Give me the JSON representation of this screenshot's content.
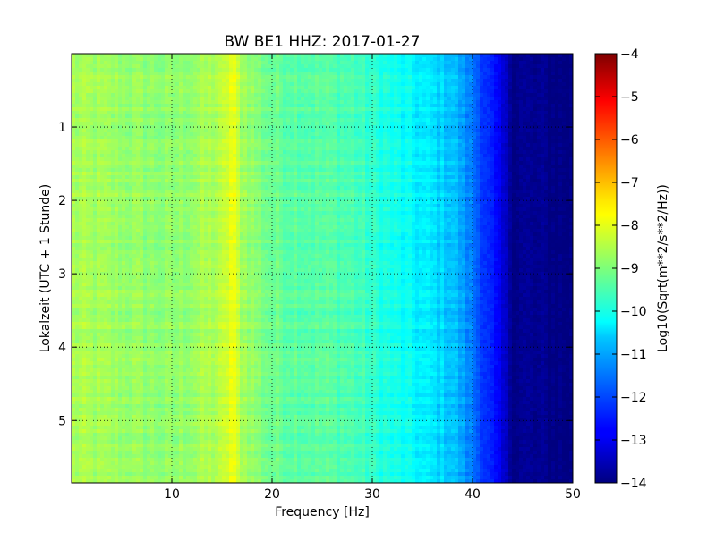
{
  "chart_data": {
    "type": "heatmap",
    "title": "BW BE1 HHZ: 2017-01-27",
    "xlabel": "Frequency [Hz]",
    "ylabel": "Lokalzeit (UTC + 1 Stunde)",
    "xlim": [
      0,
      50
    ],
    "ylim": [
      5.85,
      0
    ],
    "x_ticks": [
      {
        "value": 10,
        "label": "10"
      },
      {
        "value": 20,
        "label": "20"
      },
      {
        "value": 30,
        "label": "30"
      },
      {
        "value": 40,
        "label": "40"
      },
      {
        "value": 50,
        "label": "50"
      }
    ],
    "y_ticks": [
      {
        "value": 1,
        "label": "1"
      },
      {
        "value": 2,
        "label": "2"
      },
      {
        "value": 3,
        "label": "3"
      },
      {
        "value": 4,
        "label": "4"
      },
      {
        "value": 5,
        "label": "5"
      }
    ],
    "grid": true,
    "colormap": "jet",
    "colorbar": {
      "label": "Log10(Sqrt(m**2/s**2/Hz))",
      "range": [
        -14,
        -4
      ],
      "ticks": [
        {
          "value": -4,
          "label": "−4"
        },
        {
          "value": -5,
          "label": "−5"
        },
        {
          "value": -6,
          "label": "−6"
        },
        {
          "value": -7,
          "label": "−7"
        },
        {
          "value": -8,
          "label": "−8"
        },
        {
          "value": -9,
          "label": "−9"
        },
        {
          "value": -10,
          "label": "−10"
        },
        {
          "value": -11,
          "label": "−11"
        },
        {
          "value": -12,
          "label": "−12"
        },
        {
          "value": -13,
          "label": "−13"
        },
        {
          "value": -14,
          "label": "−14"
        }
      ]
    },
    "frequency_profile": [
      {
        "f": 0,
        "v": -8.6
      },
      {
        "f": 10,
        "v": -8.9
      },
      {
        "f": 15,
        "v": -8.5
      },
      {
        "f": 16,
        "v": -7.9
      },
      {
        "f": 17,
        "v": -8.6
      },
      {
        "f": 20,
        "v": -9.2
      },
      {
        "f": 28,
        "v": -9.5
      },
      {
        "f": 30,
        "v": -9.8
      },
      {
        "f": 34,
        "v": -10.3
      },
      {
        "f": 38,
        "v": -10.8
      },
      {
        "f": 40,
        "v": -11.6
      },
      {
        "f": 42,
        "v": -12.6
      },
      {
        "f": 44,
        "v": -13.8
      },
      {
        "f": 50,
        "v": -14.0
      }
    ]
  }
}
